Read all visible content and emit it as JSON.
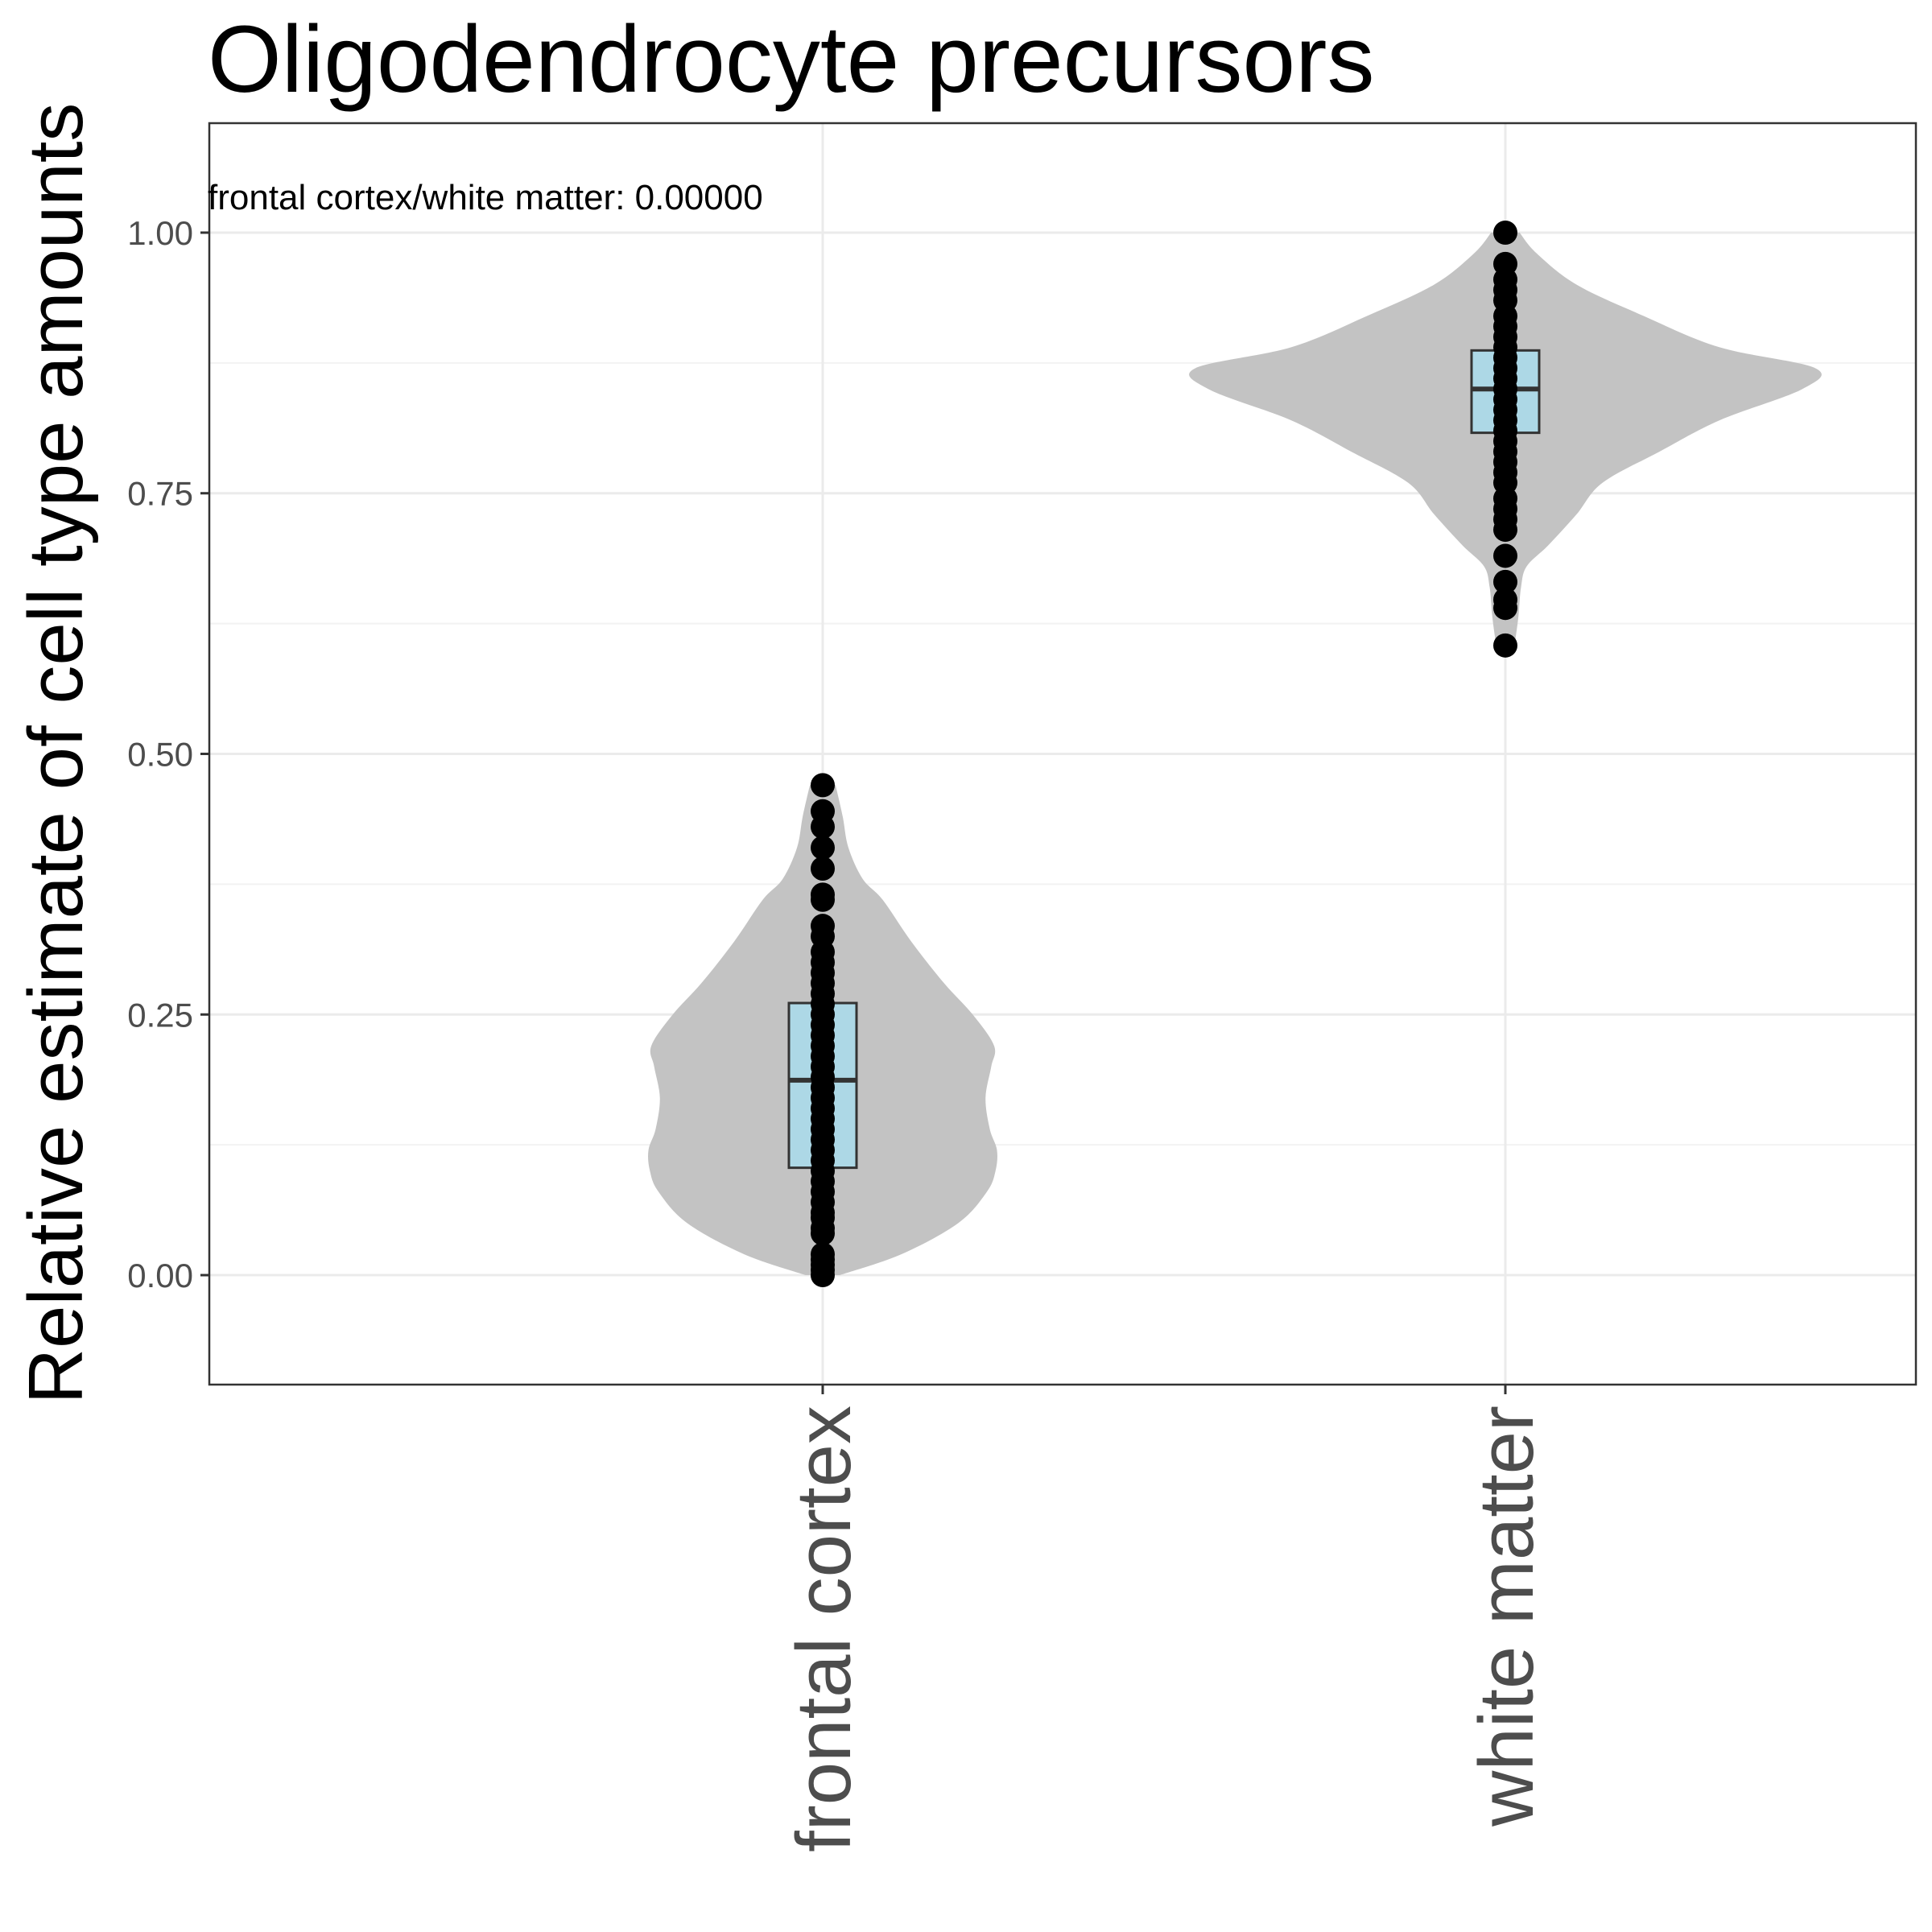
{
  "chart_data": {
    "type": "violin",
    "title": "Oligodendrocyte precursors",
    "xlabel": "",
    "ylabel": "Relative estimate of cell type amounts",
    "annotation": "frontal cortex/white matter: 0.00000",
    "categories": [
      "frontal cortex",
      "white matter"
    ],
    "ylim": [
      -0.105,
      1.105
    ],
    "yticks": [
      0.0,
      0.25,
      0.5,
      0.75,
      1.0
    ],
    "ytick_labels": [
      "0.00",
      "0.25",
      "0.50",
      "0.75",
      "1.00"
    ],
    "grid": true,
    "legend": "none",
    "colors": {
      "violin_fill": "#c3c3c3",
      "box_fill": "#add8e6",
      "box_stroke": "#333333",
      "point": "#000000",
      "grid_major": "#ebebeb",
      "grid_minor": "#f2f2f2",
      "panel_border": "#333333"
    },
    "groups": [
      {
        "name": "frontal cortex",
        "box": {
          "q1": 0.103,
          "median": 0.187,
          "q3": 0.261
        },
        "density": [
          [
            0.0,
            0.12
          ],
          [
            0.02,
            0.55
          ],
          [
            0.05,
            0.95
          ],
          [
            0.08,
            1.15
          ],
          [
            0.1,
            1.21
          ],
          [
            0.12,
            1.22
          ],
          [
            0.14,
            1.17
          ],
          [
            0.17,
            1.14
          ],
          [
            0.2,
            1.18
          ],
          [
            0.22,
            1.2
          ],
          [
            0.25,
            1.05
          ],
          [
            0.28,
            0.85
          ],
          [
            0.32,
            0.62
          ],
          [
            0.36,
            0.42
          ],
          [
            0.38,
            0.28
          ],
          [
            0.41,
            0.18
          ],
          [
            0.44,
            0.14
          ],
          [
            0.47,
            0.09
          ]
        ],
        "points": [
          0.0,
          0.005,
          0.01,
          0.015,
          0.02,
          0.04,
          0.045,
          0.055,
          0.06,
          0.07,
          0.08,
          0.09,
          0.1,
          0.11,
          0.12,
          0.13,
          0.14,
          0.15,
          0.16,
          0.17,
          0.18,
          0.19,
          0.2,
          0.21,
          0.22,
          0.23,
          0.24,
          0.25,
          0.26,
          0.27,
          0.28,
          0.29,
          0.3,
          0.31,
          0.325,
          0.335,
          0.36,
          0.365,
          0.39,
          0.41,
          0.43,
          0.445,
          0.47
        ]
      },
      {
        "name": "white matter",
        "box": {
          "q1": 0.808,
          "median": 0.85,
          "q3": 0.887
        },
        "density": [
          [
            0.6,
            0.06
          ],
          [
            0.63,
            0.09
          ],
          [
            0.66,
            0.11
          ],
          [
            0.68,
            0.15
          ],
          [
            0.7,
            0.3
          ],
          [
            0.73,
            0.5
          ],
          [
            0.76,
            0.68
          ],
          [
            0.79,
            1.08
          ],
          [
            0.82,
            1.5
          ],
          [
            0.85,
            2.08
          ],
          [
            0.87,
            2.17
          ],
          [
            0.89,
            1.5
          ],
          [
            0.92,
            0.97
          ],
          [
            0.95,
            0.5
          ],
          [
            0.98,
            0.22
          ],
          [
            1.0,
            0.1
          ]
        ],
        "points": [
          0.604,
          0.64,
          0.648,
          0.665,
          0.69,
          0.715,
          0.725,
          0.735,
          0.745,
          0.76,
          0.77,
          0.78,
          0.79,
          0.8,
          0.81,
          0.82,
          0.83,
          0.84,
          0.85,
          0.86,
          0.87,
          0.88,
          0.89,
          0.9,
          0.91,
          0.92,
          0.935,
          0.945,
          0.955,
          0.97,
          1.0
        ]
      }
    ]
  }
}
